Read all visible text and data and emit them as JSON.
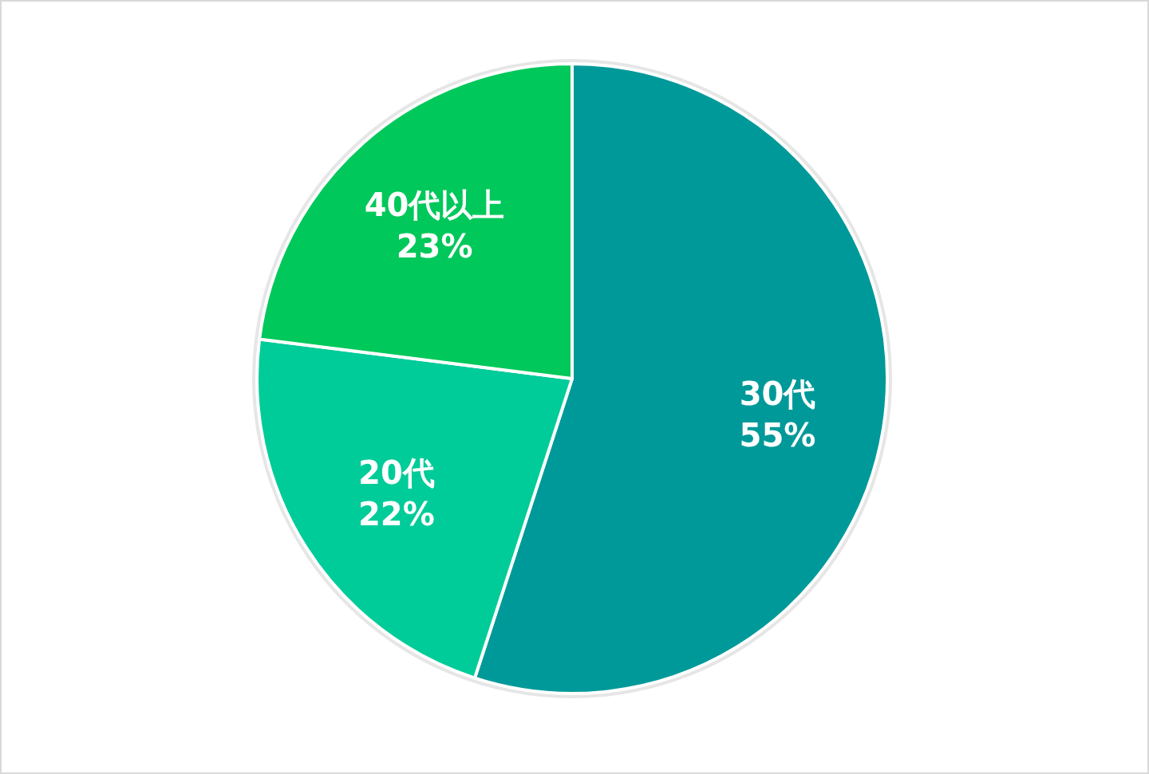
{
  "chart_data": {
    "type": "pie",
    "categories": [
      "30代",
      "20代",
      "40代以上"
    ],
    "values": [
      55,
      22,
      23
    ],
    "value_labels": [
      "55%",
      "22%",
      "23%"
    ],
    "colors": [
      "#009999",
      "#00cc99",
      "#00c85a"
    ]
  }
}
